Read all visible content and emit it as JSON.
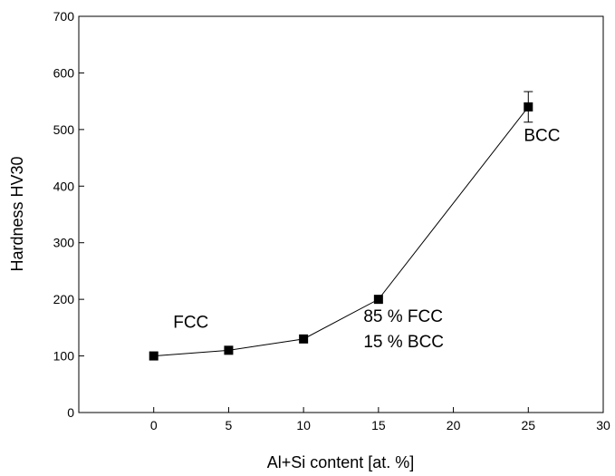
{
  "chart_data": {
    "type": "scatter",
    "xlabel": "Al+Si content [at. %]",
    "ylabel": "Hardness HV30",
    "xlim": [
      -5,
      30
    ],
    "ylim": [
      0,
      700
    ],
    "xticks": [
      0,
      5,
      10,
      15,
      20,
      25,
      30
    ],
    "yticks": [
      0,
      100,
      200,
      300,
      400,
      500,
      600,
      700
    ],
    "grid": false,
    "series": [
      {
        "x": [
          0,
          5,
          10,
          15,
          25
        ],
        "y": [
          100,
          110,
          130,
          200,
          540
        ],
        "yerr": [
          0,
          0,
          0,
          0,
          27
        ],
        "marker": "square",
        "line": true,
        "color": "#000000"
      }
    ],
    "annotations": [
      {
        "text": "FCC",
        "x": 1.3,
        "y": 150
      },
      {
        "text": "85 % FCC",
        "x": 14,
        "y": 160
      },
      {
        "text": "15 % BCC",
        "x": 14,
        "y": 115
      },
      {
        "text": "BCC",
        "x": 24.7,
        "y": 480
      }
    ]
  }
}
